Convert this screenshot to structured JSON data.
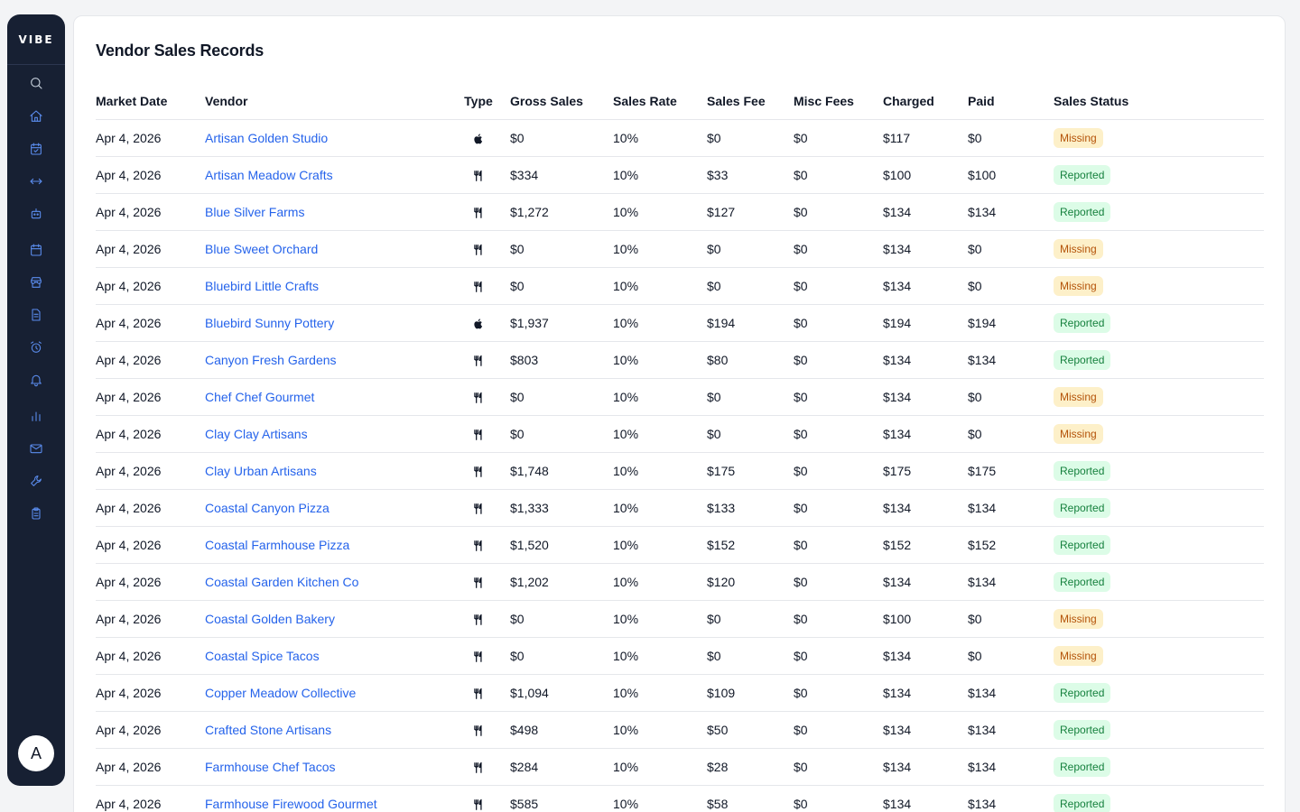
{
  "app": {
    "logo": "VIBE"
  },
  "sidebar": {
    "icons": [
      "search-icon",
      "home-icon",
      "calendar-check-icon",
      "arrows-horizontal-icon",
      "robot-icon",
      "calendar-icon",
      "store-icon",
      "document-icon",
      "alarm-clock-icon",
      "bell-icon",
      "bar-chart-icon",
      "mail-icon",
      "wrench-icon",
      "clipboard-icon"
    ],
    "avatar_initial": "A"
  },
  "page": {
    "title": "Vendor Sales Records"
  },
  "table": {
    "headers": {
      "market_date": "Market Date",
      "vendor": "Vendor",
      "type": "Type",
      "gross_sales": "Gross Sales",
      "sales_rate": "Sales Rate",
      "sales_fee": "Sales Fee",
      "misc_fees": "Misc Fees",
      "charged": "Charged",
      "paid": "Paid",
      "sales_status": "Sales Status"
    },
    "rows": [
      {
        "date": "Apr 4, 2026",
        "vendor": "Artisan Golden Studio",
        "type": "apple-icon",
        "gross": "$0",
        "rate": "10%",
        "fee": "$0",
        "misc": "$0",
        "charged": "$117",
        "paid": "$0",
        "status": "Missing"
      },
      {
        "date": "Apr 4, 2026",
        "vendor": "Artisan Meadow Crafts",
        "type": "utensils-icon",
        "gross": "$334",
        "rate": "10%",
        "fee": "$33",
        "misc": "$0",
        "charged": "$100",
        "paid": "$100",
        "status": "Reported"
      },
      {
        "date": "Apr 4, 2026",
        "vendor": "Blue Silver Farms",
        "type": "utensils-icon",
        "gross": "$1,272",
        "rate": "10%",
        "fee": "$127",
        "misc": "$0",
        "charged": "$134",
        "paid": "$134",
        "status": "Reported"
      },
      {
        "date": "Apr 4, 2026",
        "vendor": "Blue Sweet Orchard",
        "type": "utensils-icon",
        "gross": "$0",
        "rate": "10%",
        "fee": "$0",
        "misc": "$0",
        "charged": "$134",
        "paid": "$0",
        "status": "Missing"
      },
      {
        "date": "Apr 4, 2026",
        "vendor": "Bluebird Little Crafts",
        "type": "utensils-icon",
        "gross": "$0",
        "rate": "10%",
        "fee": "$0",
        "misc": "$0",
        "charged": "$134",
        "paid": "$0",
        "status": "Missing"
      },
      {
        "date": "Apr 4, 2026",
        "vendor": "Bluebird Sunny Pottery",
        "type": "apple-icon",
        "gross": "$1,937",
        "rate": "10%",
        "fee": "$194",
        "misc": "$0",
        "charged": "$194",
        "paid": "$194",
        "status": "Reported"
      },
      {
        "date": "Apr 4, 2026",
        "vendor": "Canyon Fresh Gardens",
        "type": "utensils-icon",
        "gross": "$803",
        "rate": "10%",
        "fee": "$80",
        "misc": "$0",
        "charged": "$134",
        "paid": "$134",
        "status": "Reported"
      },
      {
        "date": "Apr 4, 2026",
        "vendor": "Chef Chef Gourmet",
        "type": "utensils-icon",
        "gross": "$0",
        "rate": "10%",
        "fee": "$0",
        "misc": "$0",
        "charged": "$134",
        "paid": "$0",
        "status": "Missing"
      },
      {
        "date": "Apr 4, 2026",
        "vendor": "Clay Clay Artisans",
        "type": "utensils-icon",
        "gross": "$0",
        "rate": "10%",
        "fee": "$0",
        "misc": "$0",
        "charged": "$134",
        "paid": "$0",
        "status": "Missing"
      },
      {
        "date": "Apr 4, 2026",
        "vendor": "Clay Urban Artisans",
        "type": "utensils-icon",
        "gross": "$1,748",
        "rate": "10%",
        "fee": "$175",
        "misc": "$0",
        "charged": "$175",
        "paid": "$175",
        "status": "Reported"
      },
      {
        "date": "Apr 4, 2026",
        "vendor": "Coastal Canyon Pizza",
        "type": "utensils-icon",
        "gross": "$1,333",
        "rate": "10%",
        "fee": "$133",
        "misc": "$0",
        "charged": "$134",
        "paid": "$134",
        "status": "Reported"
      },
      {
        "date": "Apr 4, 2026",
        "vendor": "Coastal Farmhouse Pizza",
        "type": "utensils-icon",
        "gross": "$1,520",
        "rate": "10%",
        "fee": "$152",
        "misc": "$0",
        "charged": "$152",
        "paid": "$152",
        "status": "Reported"
      },
      {
        "date": "Apr 4, 2026",
        "vendor": "Coastal Garden Kitchen Co",
        "type": "utensils-icon",
        "gross": "$1,202",
        "rate": "10%",
        "fee": "$120",
        "misc": "$0",
        "charged": "$134",
        "paid": "$134",
        "status": "Reported"
      },
      {
        "date": "Apr 4, 2026",
        "vendor": "Coastal Golden Bakery",
        "type": "utensils-icon",
        "gross": "$0",
        "rate": "10%",
        "fee": "$0",
        "misc": "$0",
        "charged": "$100",
        "paid": "$0",
        "status": "Missing"
      },
      {
        "date": "Apr 4, 2026",
        "vendor": "Coastal Spice Tacos",
        "type": "utensils-icon",
        "gross": "$0",
        "rate": "10%",
        "fee": "$0",
        "misc": "$0",
        "charged": "$134",
        "paid": "$0",
        "status": "Missing"
      },
      {
        "date": "Apr 4, 2026",
        "vendor": "Copper Meadow Collective",
        "type": "utensils-icon",
        "gross": "$1,094",
        "rate": "10%",
        "fee": "$109",
        "misc": "$0",
        "charged": "$134",
        "paid": "$134",
        "status": "Reported"
      },
      {
        "date": "Apr 4, 2026",
        "vendor": "Crafted Stone Artisans",
        "type": "utensils-icon",
        "gross": "$498",
        "rate": "10%",
        "fee": "$50",
        "misc": "$0",
        "charged": "$134",
        "paid": "$134",
        "status": "Reported"
      },
      {
        "date": "Apr 4, 2026",
        "vendor": "Farmhouse Chef Tacos",
        "type": "utensils-icon",
        "gross": "$284",
        "rate": "10%",
        "fee": "$28",
        "misc": "$0",
        "charged": "$134",
        "paid": "$134",
        "status": "Reported"
      },
      {
        "date": "Apr 4, 2026",
        "vendor": "Farmhouse Firewood Gourmet",
        "type": "utensils-icon",
        "gross": "$585",
        "rate": "10%",
        "fee": "$58",
        "misc": "$0",
        "charged": "$134",
        "paid": "$134",
        "status": "Reported"
      }
    ]
  },
  "colors": {
    "sidebar_bg": "#172033",
    "accent_link": "#2563eb",
    "missing_bg": "#fdf0c9",
    "missing_text": "#b45309",
    "reported_bg": "#dcfce7",
    "reported_text": "#15803d"
  }
}
